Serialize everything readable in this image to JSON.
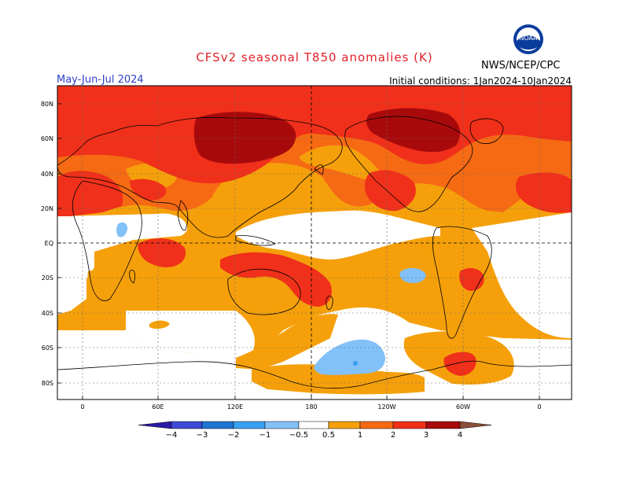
{
  "title": "CFSv2 seasonal T850 anomalies (K)",
  "period": "May-Jun-Jul 2024",
  "initial_conditions": "Initial conditions: 1Jan2024-10Jan2024",
  "agency": "NWS/NCEP/CPC",
  "logo_text": "NOAA",
  "colors": {
    "title": "#e0202a",
    "period": "#2f3fc8",
    "neg4": "#2b1aa6",
    "neg3": "#3d49d6",
    "neg2": "#1f74d1",
    "neg1": "#3aa0f0",
    "neg05": "#82c0f8",
    "pos05": "#f5a00b",
    "pos1": "#f66a14",
    "pos2": "#f0301a",
    "pos3": "#a80a0c",
    "pos4": "#c8a08c",
    "pos5": "#8a4f3a"
  },
  "map": {
    "lat_ticks": [
      "80N",
      "60N",
      "40N",
      "20N",
      "EQ",
      "20S",
      "40S",
      "60S",
      "80S"
    ],
    "lon_ticks": [
      "0",
      "60E",
      "120E",
      "180",
      "120W",
      "60W",
      "0"
    ]
  },
  "colorbar": {
    "labels": [
      "-4",
      "-3",
      "-2",
      "-1",
      "-0.5",
      "0.5",
      "1",
      "2",
      "3",
      "4"
    ]
  }
}
